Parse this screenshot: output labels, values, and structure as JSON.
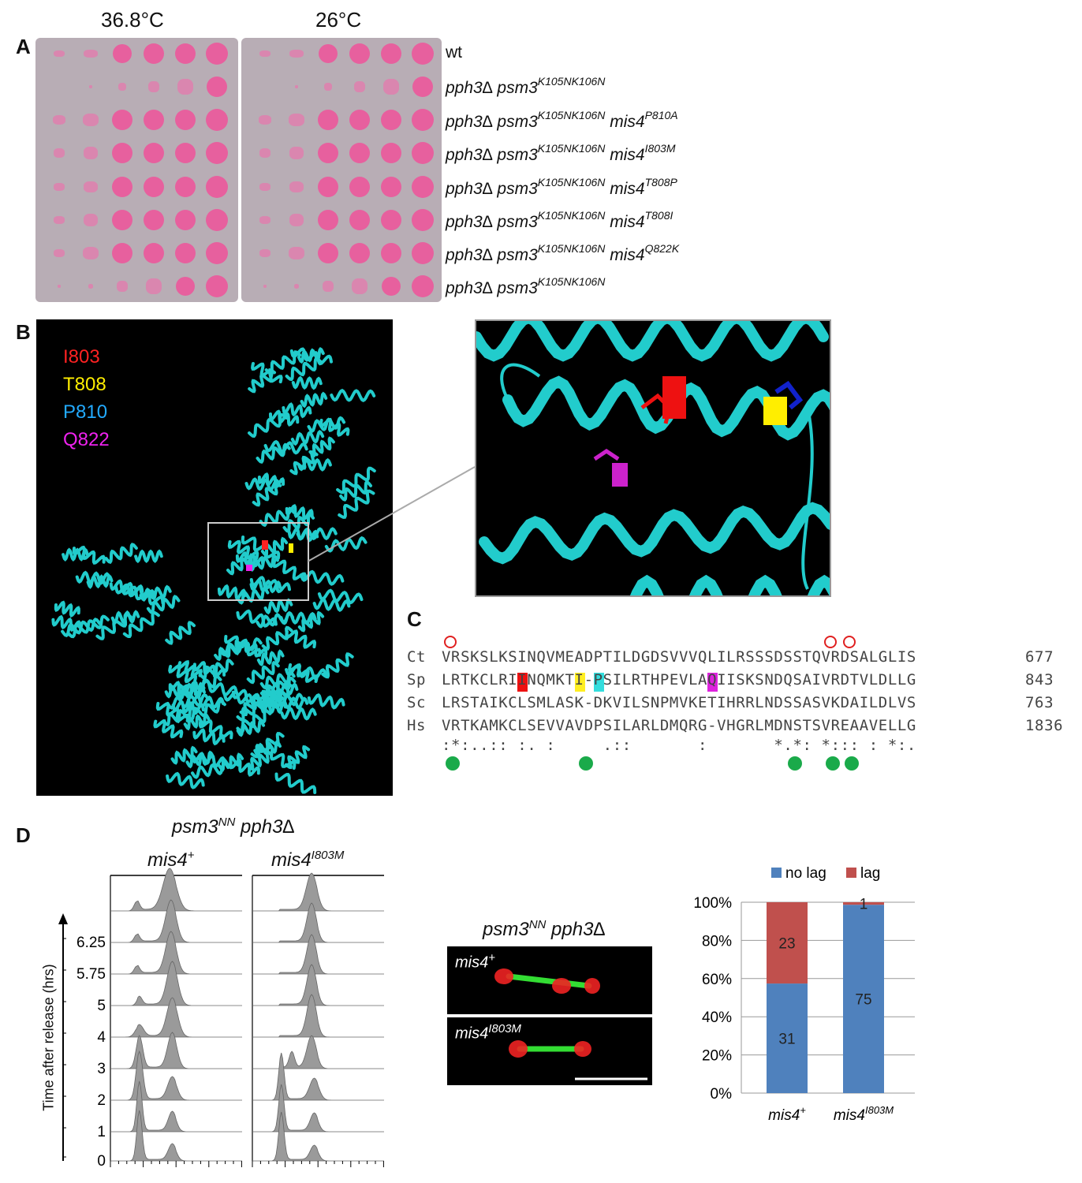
{
  "panel_labels": [
    "A",
    "B",
    "C",
    "D"
  ],
  "panelA": {
    "temps": [
      "36.8°C",
      "26°C"
    ],
    "genotypes": [
      {
        "base": "wt",
        "parts": []
      },
      {
        "base": "pph3∆ psm3",
        "parts": [
          {
            "sup": "K105NK106N"
          }
        ]
      },
      {
        "base": "pph3∆ psm3",
        "parts": [
          {
            "sup": "K105NK106N"
          },
          {
            "text": " mis4"
          },
          {
            "sup": "P810A"
          }
        ]
      },
      {
        "base": "pph3∆ psm3",
        "parts": [
          {
            "sup": "K105NK106N"
          },
          {
            "text": " mis4"
          },
          {
            "sup": "I803M"
          }
        ]
      },
      {
        "base": "pph3∆ psm3",
        "parts": [
          {
            "sup": "K105NK106N"
          },
          {
            "text": " mis4"
          },
          {
            "sup": "T808P"
          }
        ]
      },
      {
        "base": "pph3∆ psm3",
        "parts": [
          {
            "sup": "K105NK106N"
          },
          {
            "text": " mis4"
          },
          {
            "sup": "T808I"
          }
        ]
      },
      {
        "base": "pph3∆ psm3",
        "parts": [
          {
            "sup": "K105NK106N"
          },
          {
            "text": " mis4"
          },
          {
            "sup": "Q822K"
          }
        ]
      },
      {
        "base": "pph3∆ psm3",
        "parts": [
          {
            "sup": "K105NK106N"
          }
        ]
      }
    ]
  },
  "panelB": {
    "legend": [
      {
        "label": "I803",
        "color": "#ff2222"
      },
      {
        "label": "T808",
        "color": "#ffee00"
      },
      {
        "label": "P810",
        "color": "#22aaff"
      },
      {
        "label": "Q822",
        "color": "#ee22ee"
      }
    ],
    "ribbon_color": "#22cccc"
  },
  "panelC": {
    "rows": [
      {
        "sp": "Ct",
        "seq": "VRSKSLKSINQVMEADPTILDGDSVVVQLILRSSSDSSTQVRDSALGLIS",
        "num": "677"
      },
      {
        "sp": "Sp",
        "seq": "LRTKCLRIINQMKTI-PSILRTHPEVLAQIISKSNDQSAIVRDTVLDLLG",
        "num": "843"
      },
      {
        "sp": "Sc",
        "seq": "LRSTAIKCLSMLASK-DKVILSNPMVKETIHRRLNDSSASVKDAILDLVS",
        "num": "763"
      },
      {
        "sp": "Hs",
        "seq": "VRTKAMKCLSEVVAVDPSILARLDMQRG-VHGRLMDNSTSVREAAVELLG",
        "num": "1836"
      }
    ],
    "consensus": ":*:..:: :. :     .::       :       *.*: *::: : *:.",
    "red_circle_cols": [
      1,
      41,
      43
    ],
    "green_dot_cols": [
      1,
      15,
      37,
      41,
      43
    ],
    "highlights": [
      {
        "col": 8,
        "color": "red"
      },
      {
        "col": 14,
        "color": "yellow"
      },
      {
        "col": 16,
        "color": "cyan"
      },
      {
        "col": 28,
        "color": "magenta"
      }
    ]
  },
  "panelD": {
    "title": {
      "a": "psm3",
      "sup": "NN",
      "b": " pph3∆"
    },
    "col_left": {
      "a": "mis4",
      "sup": "+"
    },
    "col_right": {
      "a": "mis4",
      "sup": "I803M"
    },
    "y_axis_label": "Time after release (hrs)",
    "times": [
      "6.25",
      "5.75",
      "5",
      "4",
      "3",
      "2",
      "1",
      "0"
    ],
    "micro_title": {
      "a": "psm3",
      "sup": "NN",
      "b": " pph3∆"
    },
    "micro_labels": [
      {
        "a": "mis4",
        "sup": "+"
      },
      {
        "a": "mis4",
        "sup": "I803M"
      }
    ]
  },
  "chart_data": {
    "type": "bar",
    "stacked": true,
    "categories": [
      "mis4+",
      "mis4I803M"
    ],
    "series": [
      {
        "name": "no lag",
        "values": [
          31,
          75
        ],
        "color": "#4f81bd"
      },
      {
        "name": "lag",
        "values": [
          23,
          1
        ],
        "color": "#c0504d"
      }
    ],
    "percent_stacked": true,
    "ylim": [
      0,
      100
    ],
    "yticks": [
      "0%",
      "20%",
      "40%",
      "60%",
      "80%",
      "100%"
    ],
    "legend": "top"
  }
}
